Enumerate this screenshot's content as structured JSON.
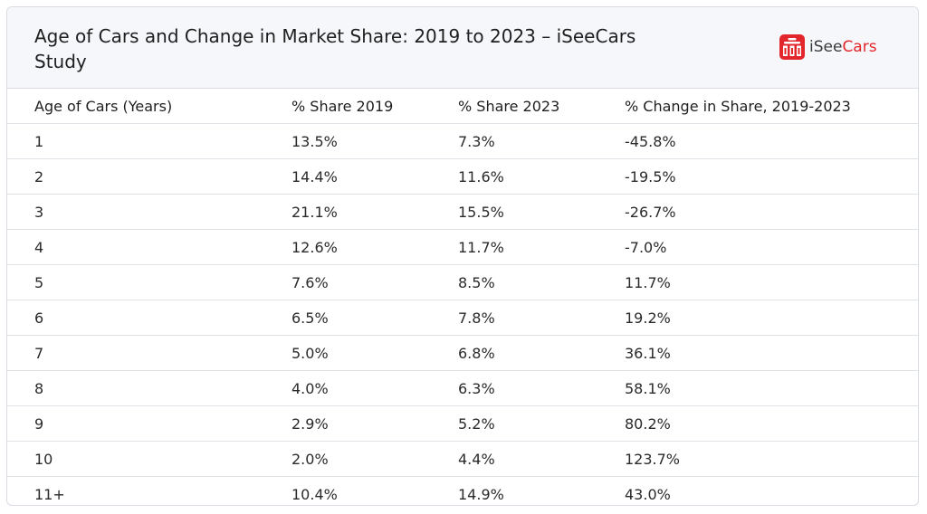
{
  "header": {
    "title": "Age of Cars and Change in Market Share: 2019 to 2023 – iSeeCars Study",
    "brand": {
      "prefix": "iSee",
      "accent": "Cars",
      "accent_color": "#e3262b",
      "logo_icon": "building-chart-icon"
    }
  },
  "table": {
    "columns": [
      "Age of Cars (Years)",
      "% Share 2019",
      "% Share 2023",
      "% Change in Share, 2019-2023"
    ],
    "rows": [
      [
        "1",
        "13.5%",
        "7.3%",
        "-45.8%"
      ],
      [
        "2",
        "14.4%",
        "11.6%",
        "-19.5%"
      ],
      [
        "3",
        "21.1%",
        "15.5%",
        "-26.7%"
      ],
      [
        "4",
        "12.6%",
        "11.7%",
        "-7.0%"
      ],
      [
        "5",
        "7.6%",
        "8.5%",
        "11.7%"
      ],
      [
        "6",
        "6.5%",
        "7.8%",
        "19.2%"
      ],
      [
        "7",
        "5.0%",
        "6.8%",
        "36.1%"
      ],
      [
        "8",
        "4.0%",
        "6.3%",
        "58.1%"
      ],
      [
        "9",
        "2.9%",
        "5.2%",
        "80.2%"
      ],
      [
        "10",
        "2.0%",
        "4.4%",
        "123.7%"
      ],
      [
        "11+",
        "10.4%",
        "14.9%",
        "43.0%"
      ]
    ]
  }
}
